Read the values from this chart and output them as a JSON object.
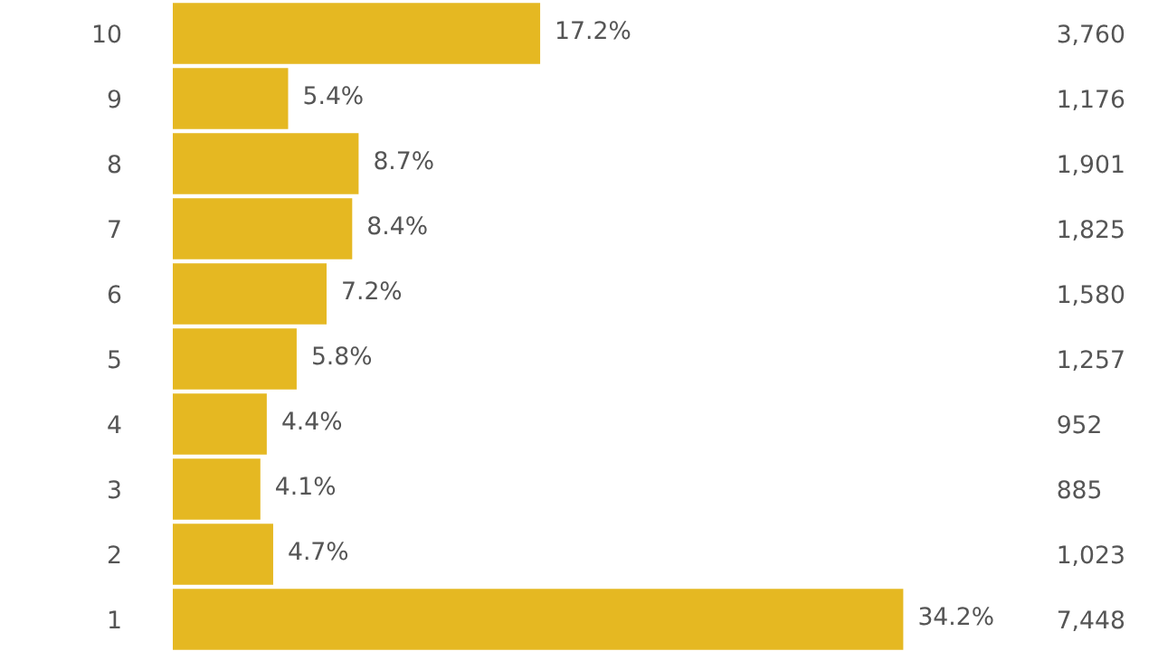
{
  "chart_data": {
    "type": "bar",
    "orientation": "horizontal",
    "categories": [
      "10",
      "9",
      "8",
      "7",
      "6",
      "5",
      "4",
      "3",
      "2",
      "1"
    ],
    "values": [
      17.2,
      5.4,
      8.7,
      8.4,
      7.2,
      5.8,
      4.4,
      4.1,
      4.7,
      34.2
    ],
    "value_labels": [
      "17.2%",
      "5.4%",
      "8.7%",
      "8.4%",
      "7.2%",
      "5.8%",
      "4.4%",
      "4.1%",
      "4.7%",
      "34.2%"
    ],
    "color": "#e5b822",
    "grid": false,
    "annotations": [
      "3,760",
      "1,176",
      "1,901",
      "1,825",
      "1,580",
      "1,257",
      "952",
      "885",
      "1,023",
      "7,448"
    ]
  }
}
